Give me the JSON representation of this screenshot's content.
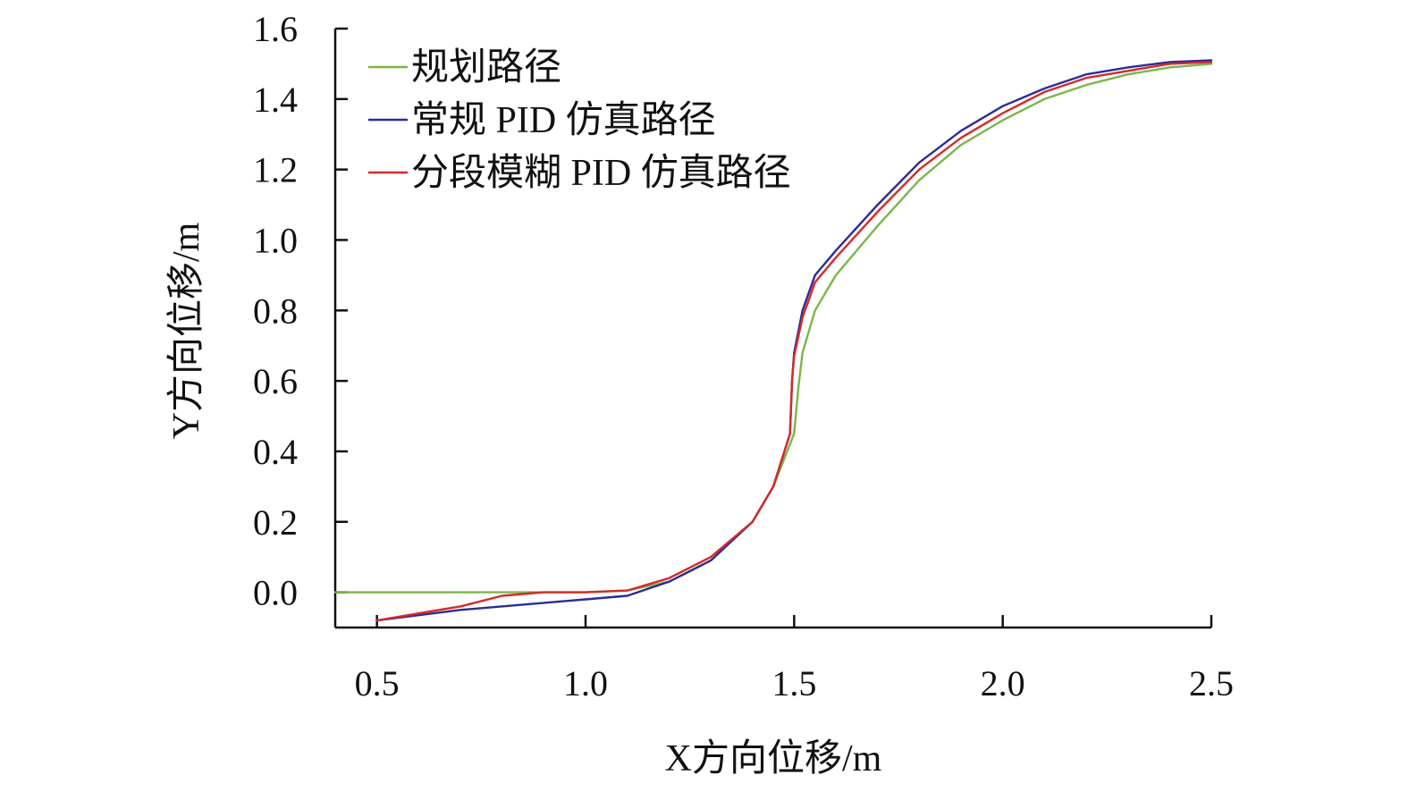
{
  "chart_data": {
    "type": "line",
    "xlabel": "X方向位移/m",
    "ylabel": "Y方向位移/m",
    "xlim": [
      0.4,
      2.5
    ],
    "ylim": [
      -0.1,
      1.6
    ],
    "xticks": [
      0.5,
      1.0,
      1.5,
      2.0,
      2.5
    ],
    "xtick_labels": [
      "0.5",
      "1.0",
      "1.5",
      "2.0",
      "2.5"
    ],
    "yticks": [
      0.0,
      0.2,
      0.4,
      0.6,
      0.8,
      1.0,
      1.2,
      1.4,
      1.6
    ],
    "ytick_labels": [
      "0.0",
      "0.2",
      "0.4",
      "0.6",
      "0.8",
      "1.0",
      "1.2",
      "1.4",
      "1.6"
    ],
    "grid": false,
    "legend_position": "top-left",
    "series": [
      {
        "name": "规划路径",
        "color": "#7ab648",
        "points": [
          [
            0.4,
            0.0
          ],
          [
            0.6,
            0.0
          ],
          [
            0.8,
            0.0
          ],
          [
            0.9,
            0.0
          ],
          [
            1.0,
            0.0
          ],
          [
            1.1,
            0.005
          ],
          [
            1.2,
            0.03
          ],
          [
            1.3,
            0.09
          ],
          [
            1.4,
            0.2
          ],
          [
            1.45,
            0.3
          ],
          [
            1.5,
            0.45
          ],
          [
            1.51,
            0.58
          ],
          [
            1.52,
            0.68
          ],
          [
            1.55,
            0.8
          ],
          [
            1.6,
            0.9
          ],
          [
            1.7,
            1.04
          ],
          [
            1.8,
            1.17
          ],
          [
            1.9,
            1.27
          ],
          [
            2.0,
            1.34
          ],
          [
            2.1,
            1.4
          ],
          [
            2.2,
            1.44
          ],
          [
            2.3,
            1.47
          ],
          [
            2.4,
            1.49
          ],
          [
            2.5,
            1.5
          ]
        ]
      },
      {
        "name": "常规 PID 仿真路径",
        "color": "#2b2b9a",
        "points": [
          [
            0.5,
            -0.08
          ],
          [
            0.7,
            -0.05
          ],
          [
            0.9,
            -0.03
          ],
          [
            1.0,
            -0.02
          ],
          [
            1.1,
            -0.01
          ],
          [
            1.2,
            0.03
          ],
          [
            1.3,
            0.09
          ],
          [
            1.4,
            0.2
          ],
          [
            1.45,
            0.3
          ],
          [
            1.49,
            0.45
          ],
          [
            1.495,
            0.6
          ],
          [
            1.5,
            0.68
          ],
          [
            1.52,
            0.8
          ],
          [
            1.55,
            0.9
          ],
          [
            1.6,
            0.97
          ],
          [
            1.7,
            1.1
          ],
          [
            1.8,
            1.22
          ],
          [
            1.9,
            1.31
          ],
          [
            2.0,
            1.38
          ],
          [
            2.1,
            1.43
          ],
          [
            2.2,
            1.47
          ],
          [
            2.3,
            1.49
          ],
          [
            2.4,
            1.505
          ],
          [
            2.5,
            1.51
          ]
        ]
      },
      {
        "name": "分段模糊 PID 仿真路径",
        "color": "#d42a2a",
        "points": [
          [
            0.5,
            -0.08
          ],
          [
            0.6,
            -0.06
          ],
          [
            0.7,
            -0.04
          ],
          [
            0.8,
            -0.01
          ],
          [
            0.9,
            0.0
          ],
          [
            1.0,
            0.0
          ],
          [
            1.1,
            0.005
          ],
          [
            1.2,
            0.04
          ],
          [
            1.3,
            0.1
          ],
          [
            1.4,
            0.2
          ],
          [
            1.45,
            0.3
          ],
          [
            1.49,
            0.45
          ],
          [
            1.495,
            0.6
          ],
          [
            1.5,
            0.67
          ],
          [
            1.52,
            0.78
          ],
          [
            1.55,
            0.88
          ],
          [
            1.6,
            0.95
          ],
          [
            1.7,
            1.08
          ],
          [
            1.8,
            1.2
          ],
          [
            1.9,
            1.29
          ],
          [
            2.0,
            1.36
          ],
          [
            2.1,
            1.42
          ],
          [
            2.2,
            1.46
          ],
          [
            2.3,
            1.48
          ],
          [
            2.4,
            1.5
          ],
          [
            2.5,
            1.505
          ]
        ]
      }
    ]
  }
}
